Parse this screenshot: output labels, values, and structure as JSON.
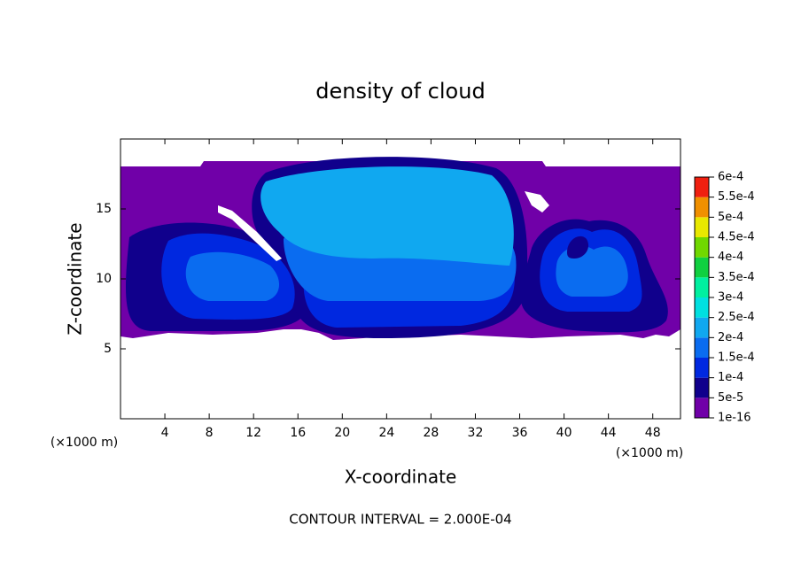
{
  "chart_data": {
    "type": "contour",
    "title": "density of cloud",
    "xlabel": "X-coordinate",
    "ylabel": "Z-coordinate",
    "x_unit_label": "(×1000 m)",
    "footer": "CONTOUR INTERVAL = 2.000E-04",
    "xlim": [
      0,
      50.5
    ],
    "ylim": [
      0,
      20
    ],
    "xticks": [
      4,
      8,
      12,
      16,
      20,
      24,
      28,
      32,
      36,
      40,
      44,
      48
    ],
    "yticks": [
      5,
      10,
      15
    ],
    "colorbar": {
      "levels": [
        {
          "value": 1e-16,
          "label": "1e-16"
        },
        {
          "value": 5e-05,
          "label": "5e-5"
        },
        {
          "value": 0.0001,
          "label": "1e-4"
        },
        {
          "value": 0.00015,
          "label": "1.5e-4"
        },
        {
          "value": 0.0002,
          "label": "2e-4"
        },
        {
          "value": 0.00025,
          "label": "2.5e-4"
        },
        {
          "value": 0.0003,
          "label": "3e-4"
        },
        {
          "value": 0.00035,
          "label": "3.5e-4"
        },
        {
          "value": 0.0004,
          "label": "4e-4"
        },
        {
          "value": 0.00045,
          "label": "4.5e-4"
        },
        {
          "value": 0.0005,
          "label": "5e-4"
        },
        {
          "value": 0.00055,
          "label": "5.5e-4"
        },
        {
          "value": 0.0006,
          "label": "6e-4"
        }
      ],
      "colors": [
        "#7000a8",
        "#10008c",
        "#0028e0",
        "#0a6cf0",
        "#10a8f0",
        "#00e0e0",
        "#00f0a0",
        "#10d040",
        "#70d800",
        "#e8e800",
        "#f09000",
        "#f02010"
      ]
    }
  }
}
